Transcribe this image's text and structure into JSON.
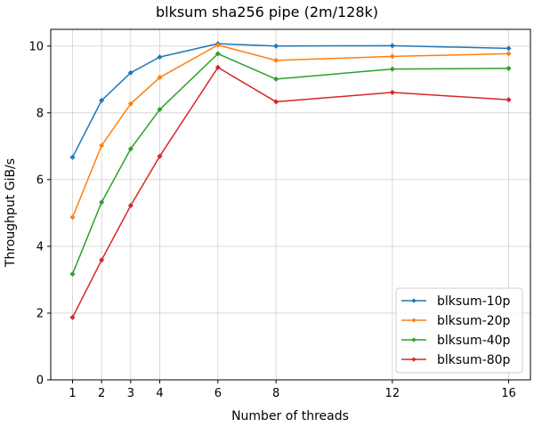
{
  "chart_data": {
    "type": "line",
    "title": "blksum sha256 pipe (2m/128k)",
    "xlabel": "Number of threads",
    "ylabel": "Throughput GiB/s",
    "x": [
      1,
      2,
      3,
      4,
      6,
      8,
      12,
      16
    ],
    "xlim": [
      0.25,
      16.75
    ],
    "ylim": [
      0,
      10.5
    ],
    "xticks": [
      "1",
      "2",
      "3",
      "4",
      "6",
      "8",
      "12",
      "16"
    ],
    "yticks": [
      "0",
      "2",
      "4",
      "6",
      "8",
      "10"
    ],
    "grid": true,
    "legend_position": "lower-right",
    "series": [
      {
        "name": "blksum-10p",
        "color": "#1f77b4",
        "values": [
          6.67,
          8.37,
          9.2,
          9.67,
          10.07,
          10.0,
          10.01,
          9.93
        ]
      },
      {
        "name": "blksum-20p",
        "color": "#ff7f0e",
        "values": [
          4.87,
          7.02,
          8.27,
          9.06,
          10.03,
          9.57,
          9.69,
          9.77
        ]
      },
      {
        "name": "blksum-40p",
        "color": "#2ca02c",
        "values": [
          3.17,
          5.32,
          6.92,
          8.1,
          9.77,
          9.01,
          9.31,
          9.33
        ]
      },
      {
        "name": "blksum-80p",
        "color": "#d62728",
        "values": [
          1.87,
          3.59,
          5.22,
          6.7,
          9.36,
          8.33,
          8.61,
          8.39
        ]
      }
    ]
  }
}
